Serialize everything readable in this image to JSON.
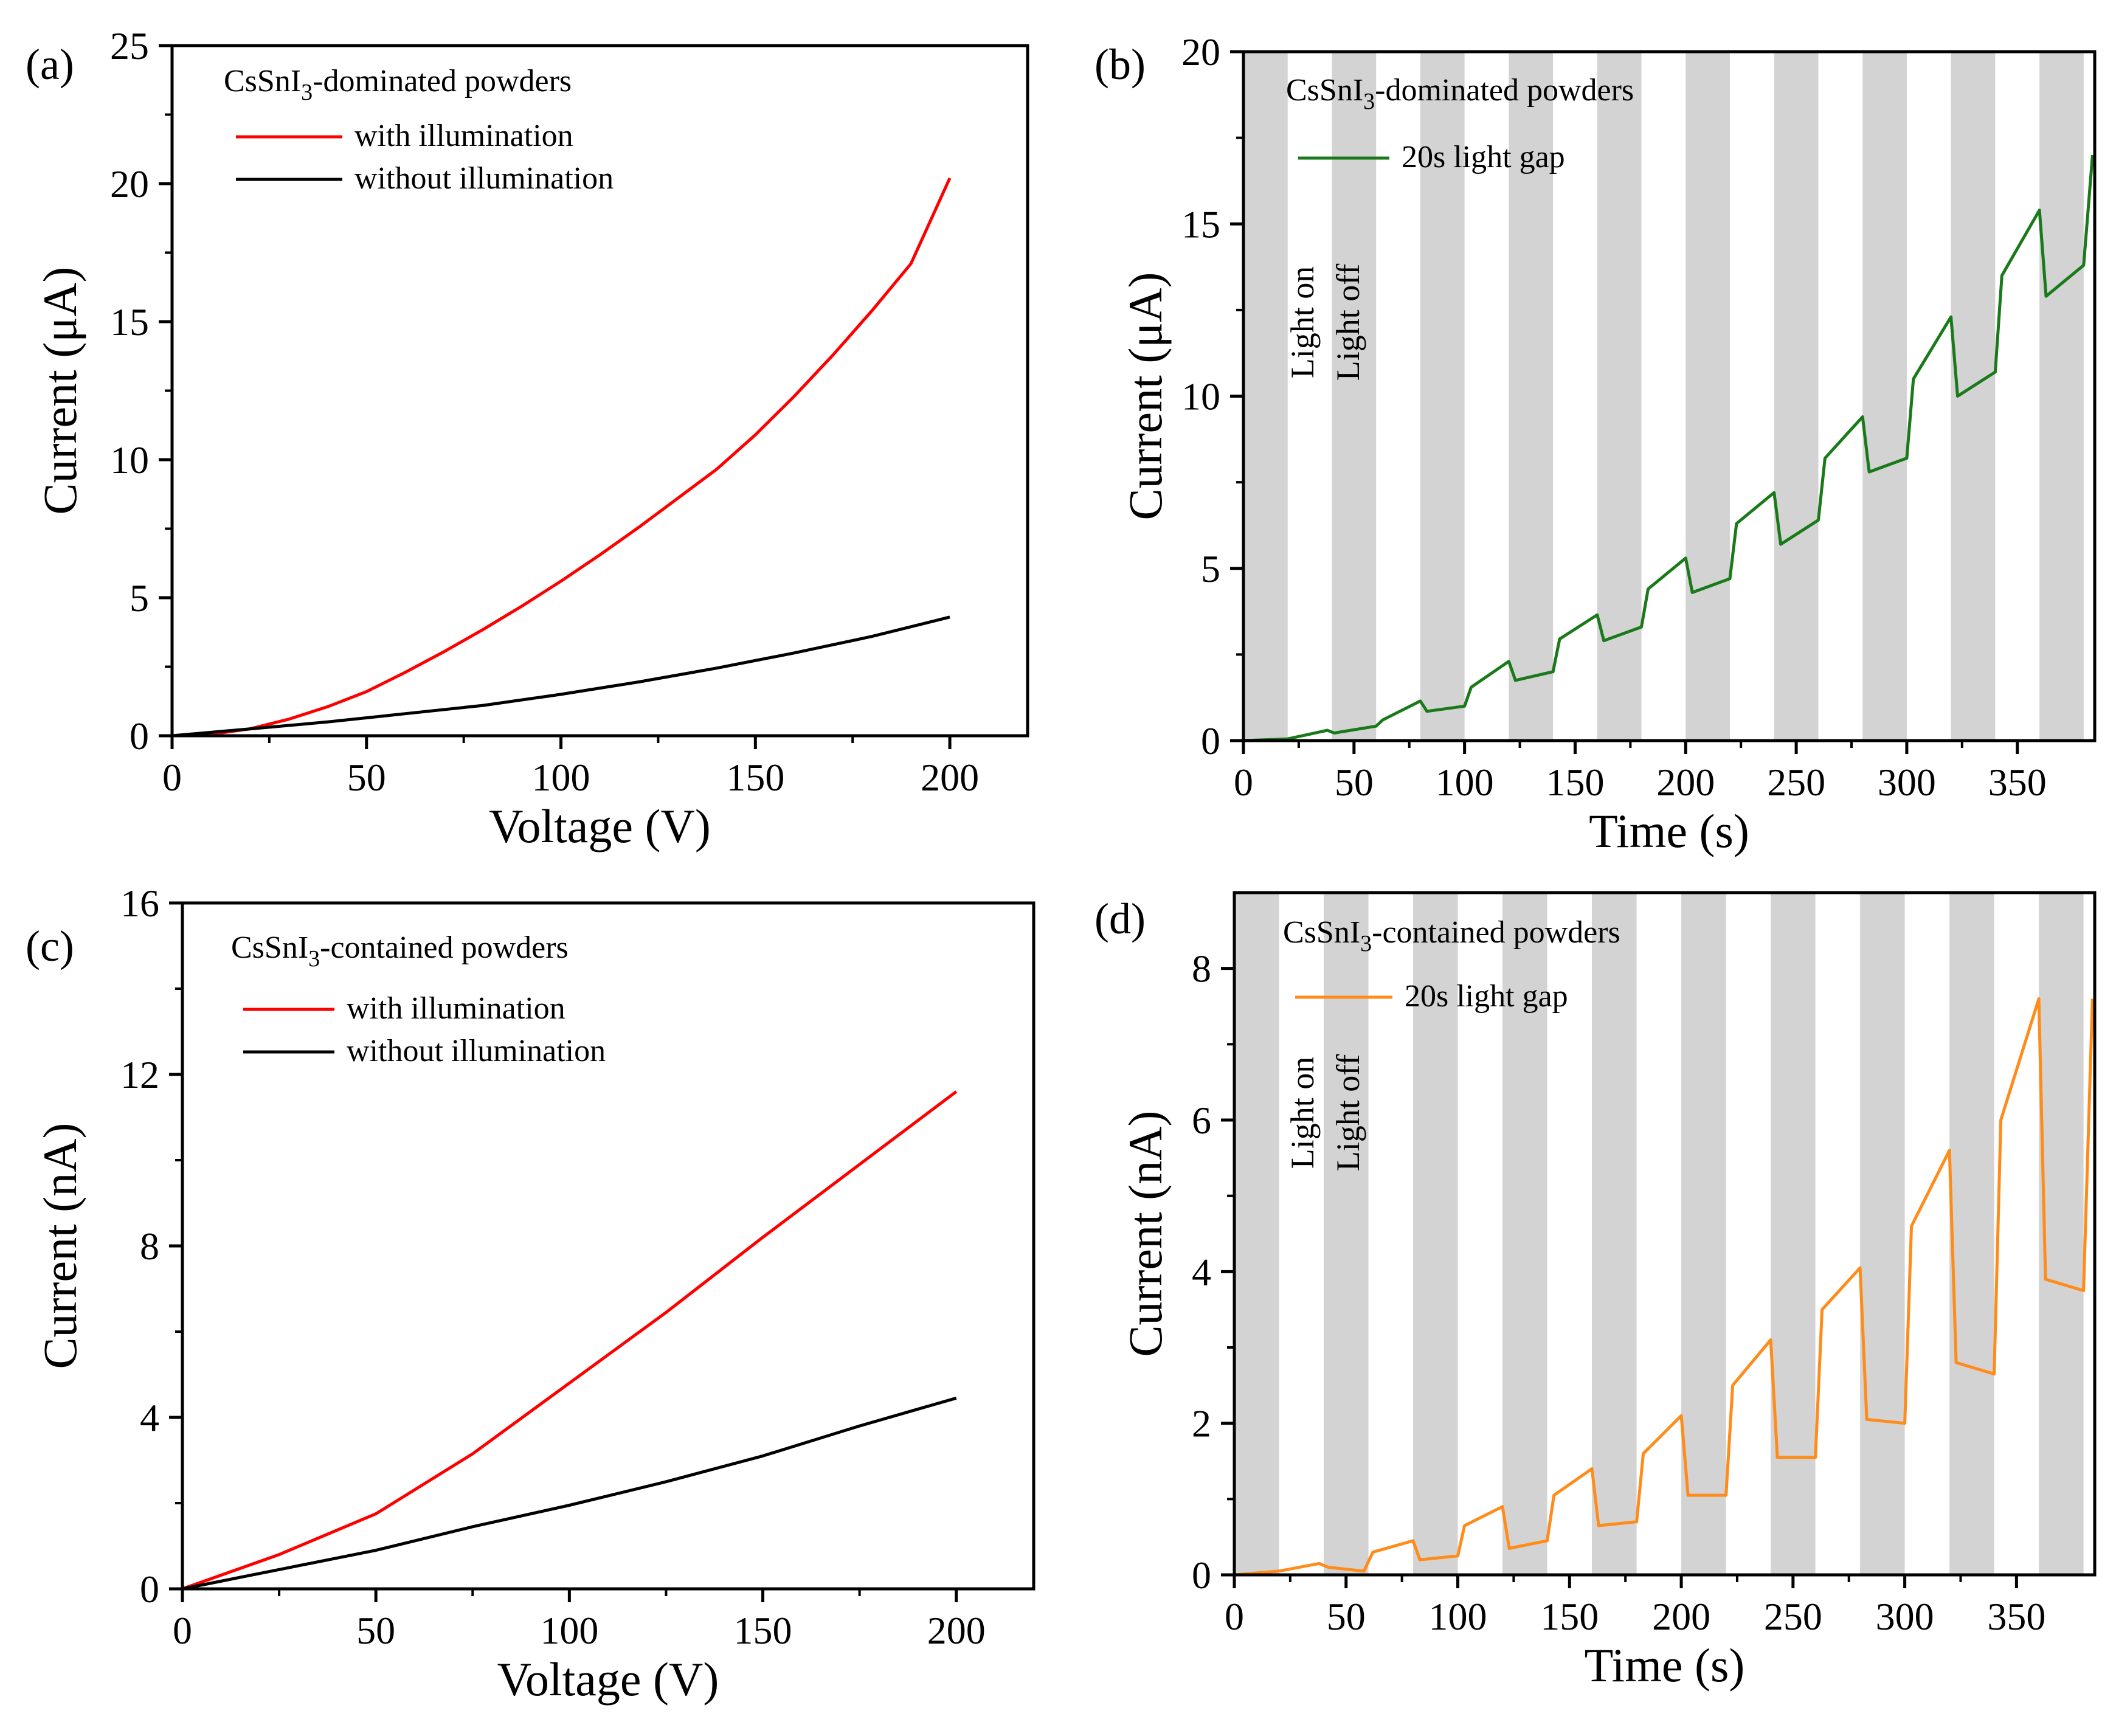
{
  "chart_data": [
    {
      "panel": "(a)",
      "type": "line",
      "title": "",
      "legend_title": "CsSnI3-dominated powders",
      "legend_title_parts": [
        "CsSnI",
        "3",
        "-dominated powders"
      ],
      "xlabel": "Voltage (V)",
      "ylabel": "Current (μA)",
      "xlim": [
        0,
        220
      ],
      "ylim": [
        0,
        25
      ],
      "xticks": [
        0,
        50,
        100,
        150,
        200
      ],
      "yticks": [
        0,
        5,
        10,
        15,
        20,
        25
      ],
      "legend_position": "top-left",
      "series": [
        {
          "name": "with illumination",
          "color": "#ff0000",
          "x": [
            0,
            10,
            20,
            30,
            40,
            50,
            60,
            70,
            80,
            90,
            100,
            110,
            120,
            130,
            140,
            150,
            160,
            170,
            180,
            190,
            200
          ],
          "y": [
            0,
            0.05,
            0.25,
            0.6,
            1.05,
            1.6,
            2.3,
            3.05,
            3.85,
            4.7,
            5.6,
            6.55,
            7.55,
            8.6,
            9.65,
            10.9,
            12.3,
            13.8,
            15.4,
            17.1,
            20.2
          ]
        },
        {
          "name": "without illumination",
          "color": "#000000",
          "x": [
            0,
            20,
            40,
            60,
            80,
            100,
            120,
            140,
            160,
            180,
            200
          ],
          "y": [
            0,
            0.25,
            0.5,
            0.8,
            1.1,
            1.5,
            1.95,
            2.45,
            3.0,
            3.6,
            4.3
          ]
        }
      ]
    },
    {
      "panel": "(b)",
      "type": "line",
      "title": "",
      "legend_title": "CsSnI3-dominated powders",
      "legend_title_parts": [
        "CsSnI",
        "3",
        "-dominated powders"
      ],
      "xlabel": "Time (s)",
      "ylabel": "Current (μA)",
      "xlim": [
        0,
        385
      ],
      "ylim": [
        0,
        20
      ],
      "xticks": [
        0,
        50,
        100,
        150,
        200,
        250,
        300,
        350
      ],
      "yticks": [
        0,
        5,
        10,
        15,
        20
      ],
      "legend_position": "top-left",
      "annotations": [
        "Light on",
        "Light off"
      ],
      "shaded_intervals": [
        [
          0,
          20
        ],
        [
          40,
          60
        ],
        [
          80,
          100
        ],
        [
          120,
          140
        ],
        [
          160,
          180
        ],
        [
          200,
          220
        ],
        [
          240,
          260
        ],
        [
          280,
          300
        ],
        [
          320,
          340
        ],
        [
          360,
          380
        ]
      ],
      "series": [
        {
          "name": "20s light gap",
          "color": "#1a7a1a",
          "x": [
            0,
            20,
            38,
            41,
            60,
            63,
            80,
            83,
            100,
            103,
            120,
            123,
            140,
            143,
            160,
            163,
            180,
            183,
            200,
            203,
            220,
            223,
            240,
            243,
            260,
            263,
            280,
            283,
            300,
            303,
            320,
            323,
            340,
            343,
            360,
            363,
            380,
            384
          ],
          "y": [
            0,
            0.05,
            0.3,
            0.22,
            0.42,
            0.6,
            1.15,
            0.85,
            1.0,
            1.55,
            2.3,
            1.75,
            2.0,
            2.95,
            3.65,
            2.9,
            3.3,
            4.4,
            5.3,
            4.3,
            4.7,
            6.3,
            7.2,
            5.7,
            6.4,
            8.2,
            9.4,
            7.8,
            8.2,
            10.5,
            12.3,
            10.0,
            10.7,
            13.5,
            15.4,
            12.9,
            13.8,
            17.0
          ]
        }
      ]
    },
    {
      "panel": "(c)",
      "type": "line",
      "title": "",
      "legend_title": "CsSnI3-contained powders",
      "legend_title_parts": [
        "CsSnI",
        "3",
        "-contained powders"
      ],
      "xlabel": "Voltage (V)",
      "ylabel": "Current (nA)",
      "xlim": [
        0,
        220
      ],
      "ylim": [
        0,
        16
      ],
      "xticks": [
        0,
        50,
        100,
        150,
        200
      ],
      "yticks": [
        0,
        4,
        8,
        12,
        16
      ],
      "legend_position": "top-left",
      "series": [
        {
          "name": "with illumination",
          "color": "#ff0000",
          "x": [
            0,
            25,
            50,
            75,
            100,
            125,
            150,
            175,
            200
          ],
          "y": [
            0,
            0.8,
            1.75,
            3.15,
            4.8,
            6.45,
            8.2,
            9.9,
            11.6
          ]
        },
        {
          "name": "without illumination",
          "color": "#000000",
          "x": [
            0,
            25,
            50,
            75,
            100,
            125,
            150,
            175,
            200
          ],
          "y": [
            0,
            0.45,
            0.9,
            1.45,
            1.95,
            2.5,
            3.1,
            3.8,
            4.45
          ]
        }
      ]
    },
    {
      "panel": "(d)",
      "type": "line",
      "title": "",
      "legend_title": "CsSnI3-contained powders",
      "legend_title_parts": [
        "CsSnI",
        "3",
        "-contained powders"
      ],
      "xlabel": "Time (s)",
      "ylabel": "Current (nA)",
      "xlim": [
        0,
        385
      ],
      "ylim": [
        0,
        9
      ],
      "xticks": [
        0,
        50,
        100,
        150,
        200,
        250,
        300,
        350
      ],
      "yticks": [
        0,
        2,
        4,
        6,
        8
      ],
      "legend_position": "top-left",
      "annotations": [
        "Light on",
        "Light off"
      ],
      "shaded_intervals": [
        [
          0,
          20
        ],
        [
          40,
          60
        ],
        [
          80,
          100
        ],
        [
          120,
          140
        ],
        [
          160,
          180
        ],
        [
          200,
          220
        ],
        [
          240,
          260
        ],
        [
          280,
          300
        ],
        [
          320,
          340
        ],
        [
          360,
          380
        ]
      ],
      "series": [
        {
          "name": "20s light gap",
          "color": "#ff8c1a",
          "x": [
            0,
            20,
            38,
            42,
            58,
            62,
            80,
            83,
            100,
            103,
            120,
            123,
            140,
            143,
            160,
            163,
            180,
            183,
            200,
            203,
            220,
            223,
            240,
            243,
            260,
            263,
            280,
            283,
            300,
            303,
            320,
            323,
            340,
            343,
            360,
            363,
            380,
            384
          ],
          "y": [
            0,
            0.05,
            0.15,
            0.1,
            0.05,
            0.3,
            0.45,
            0.2,
            0.25,
            0.65,
            0.9,
            0.35,
            0.45,
            1.05,
            1.4,
            0.65,
            0.7,
            1.6,
            2.1,
            1.05,
            1.05,
            2.5,
            3.1,
            1.55,
            1.55,
            3.5,
            4.05,
            2.05,
            2.0,
            4.6,
            5.6,
            2.8,
            2.65,
            6.0,
            7.6,
            3.9,
            3.75,
            7.6
          ]
        }
      ]
    }
  ]
}
